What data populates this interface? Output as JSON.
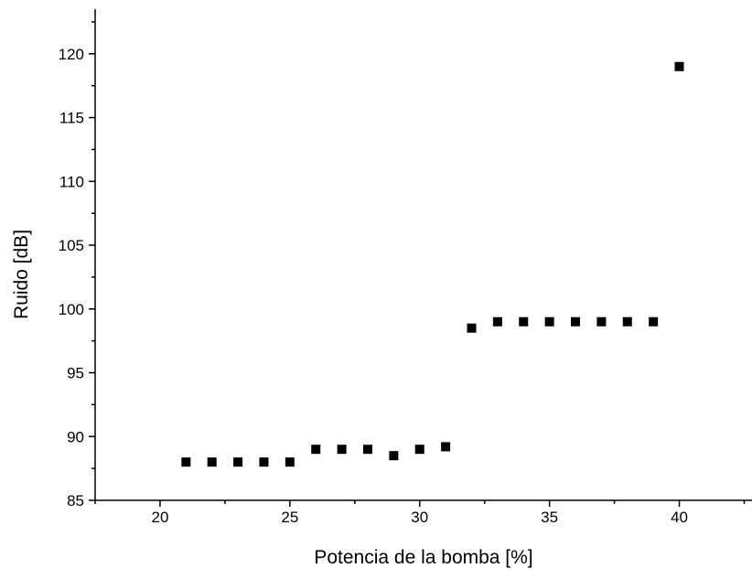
{
  "chart_data": {
    "type": "scatter",
    "title": "",
    "xlabel": "Potencia de la bomba [%]",
    "ylabel": "Ruido [dB]",
    "xlim": [
      17.5,
      42.8
    ],
    "ylim": [
      85,
      123.5
    ],
    "xticks": [
      20,
      25,
      30,
      35,
      40
    ],
    "xtick_labels": [
      "20",
      "25",
      "30",
      "35",
      "40"
    ],
    "yticks": [
      85,
      90,
      95,
      100,
      105,
      110,
      115,
      120
    ],
    "ytick_labels": [
      "85",
      "90",
      "95",
      "100",
      "105",
      "110",
      "115",
      "120"
    ],
    "marker": "square",
    "marker_color": "#000000",
    "grid": false,
    "legend": "none",
    "series": [
      {
        "x": [
          21,
          22,
          23,
          24,
          25,
          26,
          27,
          28,
          29,
          30,
          31,
          32,
          33,
          34,
          35,
          36,
          37,
          38,
          39,
          40
        ],
        "y": [
          88,
          88,
          88,
          88,
          88,
          89,
          89,
          89,
          88.5,
          89,
          89.2,
          98.5,
          99,
          99,
          99,
          99,
          99,
          99,
          99,
          119
        ]
      }
    ]
  }
}
